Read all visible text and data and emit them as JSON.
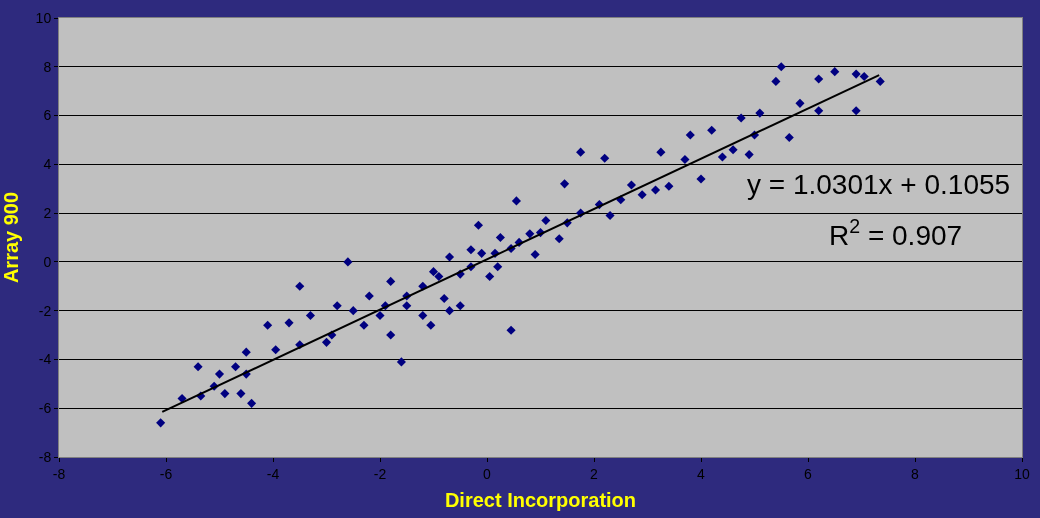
{
  "chart_data": {
    "type": "scatter",
    "xlabel": "Direct Incorporation",
    "ylabel": "Array 900",
    "annotations": [
      "y = 1.0301x + 0.1055",
      "R$^{2}$ = 0.907"
    ],
    "xlim": [
      -8,
      10
    ],
    "xticks": [
      -8,
      -6,
      -4,
      -2,
      0,
      2,
      4,
      6,
      8,
      10
    ],
    "ylim": [
      -8,
      10
    ],
    "yticks": [
      -8,
      -6,
      -4,
      -2,
      0,
      2,
      4,
      6,
      8,
      10
    ],
    "grid": "y",
    "marker": "diamond",
    "series": [
      {
        "color": "#000080",
        "x": [
          -6.1,
          -5.7,
          -5.4,
          -5.35,
          -5.1,
          -4.9,
          -5.0,
          -4.7,
          -4.6,
          -4.5,
          -4.5,
          -4.4,
          -4.1,
          -3.95,
          -3.5,
          -3.7,
          -3.5,
          -3.3,
          -2.8,
          -2.6,
          -2.9,
          -2.3,
          -2.2,
          -1.8,
          -1.6,
          -1.9,
          -1.5,
          -1.2,
          -1.05,
          -0.9,
          -0.7,
          -0.5,
          -0.3,
          -0.16,
          -0.1,
          0.05,
          0.15,
          0.45,
          0.25,
          0.45,
          0.55,
          0.8,
          1.1,
          1.35,
          1.45,
          1.75,
          1.75,
          2.1,
          2.2,
          2.5,
          2.7,
          2.9,
          3.15,
          3.25,
          3.4,
          3.7,
          3.8,
          4.0,
          4.2,
          4.4,
          4.6,
          4.9,
          4.75,
          5.0,
          5.1,
          5.4,
          5.5,
          5.65,
          5.85,
          6.2,
          6.2,
          6.5,
          6.9,
          6.9,
          7.05,
          7.35,
          -2.0,
          -1.5,
          -1.0,
          -0.8,
          -0.5,
          -0.3,
          0.2,
          0.6,
          1.0,
          -2.5,
          -3.0,
          -1.8,
          -1.2,
          0.9,
          1.5,
          -0.7,
          2.3
        ],
        "values": [
          -6.6,
          -5.6,
          -4.3,
          -5.5,
          -5.1,
          -5.4,
          -4.6,
          -4.3,
          -5.4,
          -3.7,
          -4.6,
          -5.8,
          -2.6,
          -3.6,
          -1.0,
          -2.5,
          -3.4,
          -2.2,
          -1.8,
          0,
          -3.0,
          -2.6,
          -1.4,
          -0.8,
          -4.1,
          -1.8,
          -1.4,
          -1.0,
          -2.6,
          -0.6,
          0.2,
          -1.8,
          -0.2,
          1.5,
          0.35,
          -0.6,
          0.35,
          -2.8,
          1.0,
          0.55,
          2.5,
          1.15,
          1.7,
          0.95,
          3.2,
          2.0,
          4.5,
          2.35,
          4.25,
          2.55,
          3.15,
          2.75,
          2.95,
          4.5,
          3.1,
          4.2,
          5.2,
          3.4,
          5.4,
          4.3,
          4.6,
          4.4,
          5.9,
          5.2,
          6.1,
          7.4,
          8.0,
          5.1,
          6.5,
          7.5,
          6.2,
          7.8,
          6.2,
          7.7,
          7.6,
          7.4,
          -2.2,
          -1.8,
          -0.4,
          -1.5,
          -0.5,
          0.5,
          -0.2,
          0.8,
          1.2,
          -2.0,
          -3.3,
          -3.0,
          -2.2,
          0.3,
          1.6,
          -2.0,
          1.9
        ]
      },
      {
        "type": "line",
        "color": "#000000",
        "marker": "none",
        "x": [
          -6.07,
          7.33
        ],
        "values": [
          -6.15,
          7.66
        ]
      }
    ]
  }
}
